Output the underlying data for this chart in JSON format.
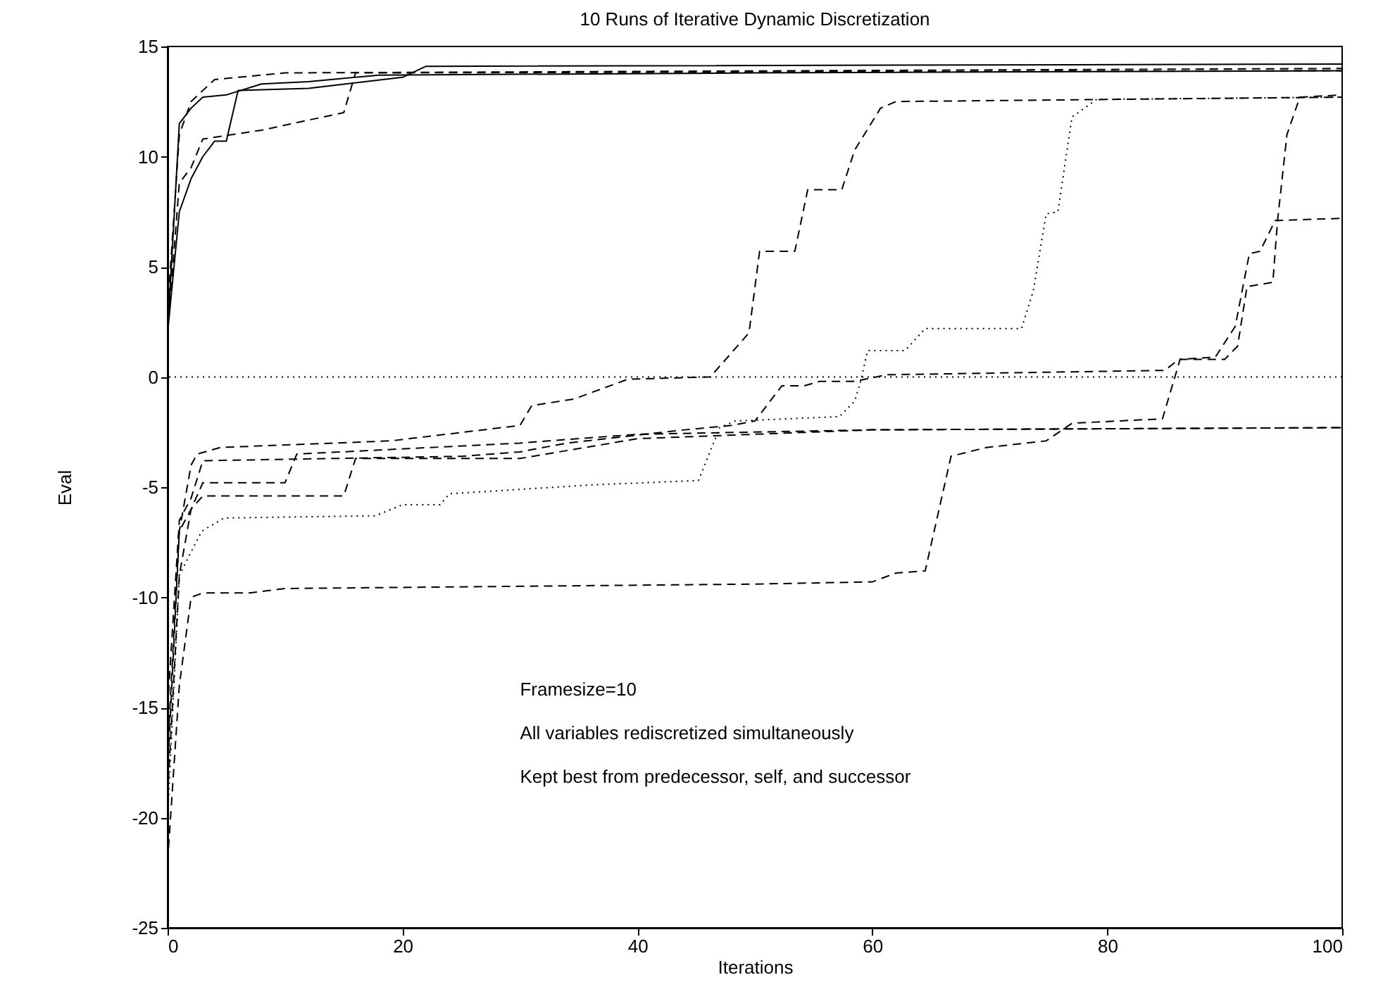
{
  "chart_data": {
    "type": "line",
    "title": "10 Runs of Iterative Dynamic Discretization",
    "xlabel": "Iterations",
    "ylabel": "Eval",
    "xlim": [
      0,
      100
    ],
    "ylim": [
      -25,
      15
    ],
    "xticks": [
      0,
      20,
      40,
      60,
      80,
      100
    ],
    "yticks": [
      -25,
      -20,
      -15,
      -10,
      -5,
      0,
      5,
      10,
      15
    ],
    "grid": false,
    "marker": "none",
    "series": [
      {
        "color": "#000000",
        "line_style": "solid",
        "x": [
          0,
          1,
          2,
          3,
          5,
          8,
          12,
          18,
          50,
          100
        ],
        "values": [
          2,
          11.5,
          12.2,
          12.7,
          12.8,
          13.3,
          13.4,
          13.7,
          13.8,
          13.9
        ]
      },
      {
        "color": "#000000",
        "line_style": "solid",
        "x": [
          0,
          1,
          2,
          3,
          4,
          5,
          6,
          12,
          20,
          22,
          100
        ],
        "values": [
          2,
          7.5,
          9,
          10,
          10.7,
          10.7,
          13,
          13.1,
          13.6,
          14.1,
          14.2
        ]
      },
      {
        "color": "#000000",
        "line_style": "dashed",
        "x": [
          0,
          1,
          2,
          4,
          10,
          100
        ],
        "values": [
          3,
          11,
          12.5,
          13.5,
          13.8,
          14
        ]
      },
      {
        "color": "#000000",
        "line_style": "dashed",
        "x": [
          0,
          1,
          2,
          3,
          8,
          15,
          16,
          100
        ],
        "values": [
          2,
          8.8,
          9.5,
          10.8,
          11.2,
          12,
          13.8,
          13.9
        ]
      },
      {
        "color": "#000000",
        "line_style": "dashed",
        "x": [
          0,
          1,
          2,
          2.5,
          4.5,
          19,
          30,
          31,
          34.6,
          39.2,
          46.2,
          49.5,
          50.4,
          53.4,
          54.5,
          57.4,
          58.5,
          60.7,
          62,
          100
        ],
        "values": [
          -18,
          -7,
          -4,
          -3.5,
          -3.2,
          -2.9,
          -2.2,
          -1.3,
          -1.0,
          -0.1,
          0,
          2.0,
          5.7,
          5.7,
          8.5,
          8.5,
          10.3,
          12.2,
          12.5,
          12.7
        ]
      },
      {
        "color": "#000000",
        "line_style": "dotted",
        "x": [
          0,
          1,
          2.9,
          4.8,
          17.7,
          20,
          23.2,
          24,
          36,
          45.2,
          47,
          48.3,
          57.2,
          58.5,
          59,
          59.6,
          62.8,
          64.5,
          72.7,
          73.7,
          74.8,
          75.8,
          77,
          79.1,
          100
        ],
        "values": [
          -20,
          -9,
          -7,
          -6.4,
          -6.3,
          -5.8,
          -5.8,
          -5.3,
          -4.9,
          -4.7,
          -2.3,
          -2.0,
          -1.8,
          -1.1,
          -0.2,
          1.2,
          1.2,
          2.2,
          2.2,
          3.9,
          7.4,
          7.5,
          11.8,
          12.6,
          12.7
        ]
      },
      {
        "color": "#000000",
        "line_style": "dashed",
        "x": [
          0,
          1,
          2,
          3,
          25,
          30,
          34,
          44,
          48,
          50,
          52.3,
          54.2,
          55.5,
          58.5,
          61.2,
          84.9,
          86.1,
          90,
          91.1,
          91.9,
          94.1,
          94.5,
          95.3,
          96.4,
          100
        ],
        "values": [
          -15,
          -6.5,
          -5.5,
          -3.8,
          -3.6,
          -3.4,
          -3.0,
          -2.4,
          -2.2,
          -2.0,
          -0.4,
          -0.4,
          -0.2,
          -0.2,
          0.1,
          0.3,
          0.8,
          0.8,
          1.4,
          4.1,
          4.3,
          7.1,
          11,
          12.7,
          12.8
        ]
      },
      {
        "color": "#000000",
        "line_style": "dashed",
        "x": [
          0,
          1,
          2,
          3,
          7,
          10,
          30,
          50,
          60,
          62,
          64.5,
          66.7,
          69.7,
          74.8,
          77,
          84.7,
          86.2,
          89.2,
          90.9,
          92.1,
          93,
          94.3,
          100
        ],
        "values": [
          -22,
          -14,
          -10,
          -9.8,
          -9.8,
          -9.6,
          -9.5,
          -9.4,
          -9.3,
          -8.9,
          -8.8,
          -3.6,
          -3.2,
          -2.9,
          -2.1,
          -1.9,
          0.8,
          0.9,
          2.3,
          5.6,
          5.7,
          7.1,
          7.2
        ]
      },
      {
        "color": "#000000",
        "line_style": "dashed",
        "x": [
          0,
          1,
          2,
          3,
          10,
          11,
          30,
          40,
          60,
          100
        ],
        "values": [
          -17,
          -7,
          -6,
          -4.8,
          -4.8,
          -3.5,
          -3.0,
          -2.6,
          -2.4,
          -2.3
        ]
      },
      {
        "color": "#000000",
        "line_style": "dashed",
        "x": [
          0,
          1,
          2,
          3,
          15,
          16,
          30,
          40,
          60,
          100
        ],
        "values": [
          -19,
          -9,
          -6,
          -5.4,
          -5.4,
          -3.7,
          -3.7,
          -2.8,
          -2.4,
          -2.3
        ]
      }
    ],
    "ref_lines": [
      {
        "axis": "y",
        "value": 0,
        "line_style": "dotted",
        "color": "#000000"
      }
    ],
    "annotations": [
      "Framesize=10",
      "All variables rediscretized simultaneously",
      "Kept best from predecessor, self, and successor"
    ]
  }
}
